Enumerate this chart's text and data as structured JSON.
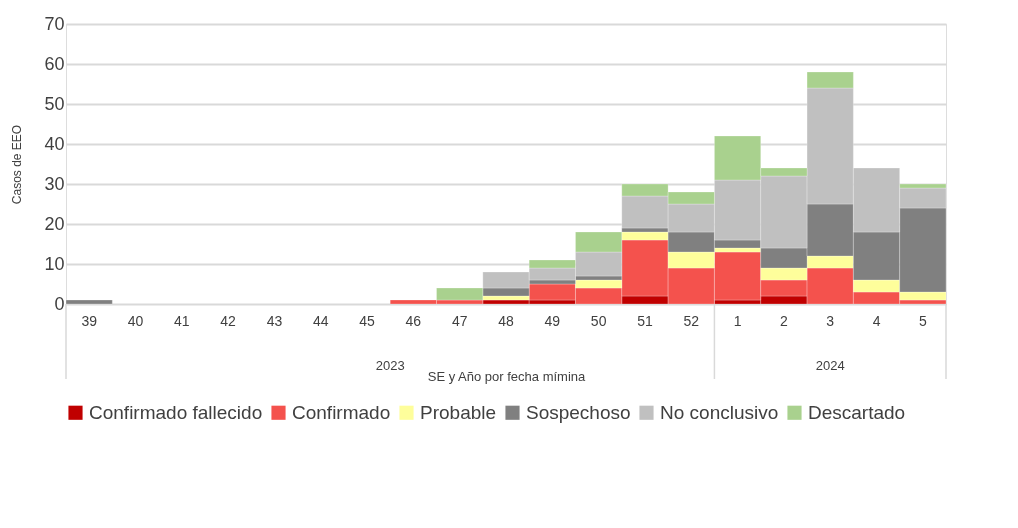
{
  "chart_data": {
    "type": "bar",
    "stacked": true,
    "xlabel": "SE y Año por fecha mímina",
    "ylabel": "Casos de EEO",
    "categories": [
      "39",
      "40",
      "41",
      "42",
      "43",
      "44",
      "45",
      "46",
      "47",
      "48",
      "49",
      "50",
      "51",
      "52",
      "1",
      "2",
      "3",
      "4",
      "5"
    ],
    "series": [
      {
        "name": "Confirmado fallecido",
        "color": "#c00000",
        "values": [
          null,
          null,
          null,
          null,
          null,
          null,
          null,
          null,
          null,
          1,
          1,
          null,
          2,
          null,
          1,
          2,
          null,
          null,
          null
        ]
      },
      {
        "name": "Confirmado",
        "color": "#f4524d",
        "values": [
          null,
          null,
          null,
          null,
          null,
          null,
          null,
          1,
          1,
          null,
          4,
          4,
          14,
          9,
          12,
          4,
          9,
          3,
          1
        ]
      },
      {
        "name": "Probable",
        "color": "#fefe9b",
        "values": [
          null,
          null,
          null,
          null,
          null,
          null,
          null,
          null,
          null,
          1,
          null,
          2,
          2,
          4,
          1,
          3,
          3,
          3,
          2
        ]
      },
      {
        "name": "Sospechoso",
        "color": "#808080",
        "values": [
          1,
          null,
          null,
          null,
          null,
          null,
          null,
          null,
          null,
          2,
          1,
          1,
          1,
          5,
          2,
          5,
          13,
          12,
          21
        ]
      },
      {
        "name": "No conclusivo",
        "color": "#c0c0c0",
        "values": [
          null,
          null,
          null,
          null,
          null,
          null,
          null,
          null,
          null,
          4,
          3,
          6,
          8,
          7,
          15,
          18,
          29,
          16,
          5
        ]
      },
      {
        "name": "Descartado",
        "color": "#a9d18e",
        "values": [
          null,
          null,
          null,
          null,
          null,
          null,
          null,
          null,
          3,
          null,
          2,
          5,
          3,
          3,
          11,
          2,
          4,
          null,
          1
        ]
      }
    ],
    "ylim": [
      0,
      70
    ],
    "yticks": [
      0,
      10,
      20,
      30,
      40,
      50,
      60,
      70
    ],
    "grid": "y",
    "legend": "bottom",
    "annotations": [
      "2023",
      "2024"
    ]
  }
}
